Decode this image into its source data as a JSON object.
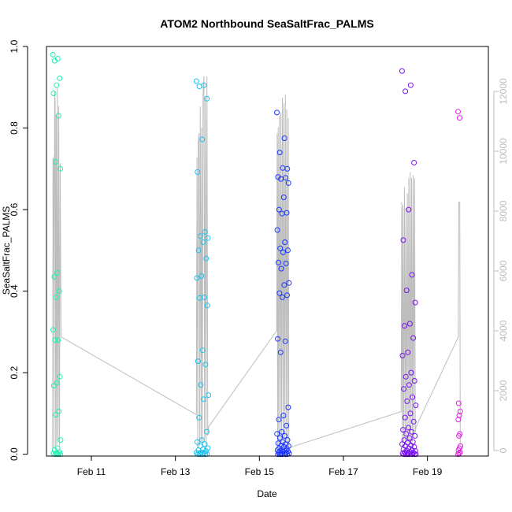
{
  "chart_data": {
    "type": "scatter",
    "title": "ATOM2 Northbound SeaSaltFrac_PALMS",
    "xlabel": "Date",
    "ylabel": "SeaSaltFrac_PALMS",
    "xlim": [
      "2017-02-09T22:20",
      "2017-02-20T10:50"
    ],
    "ylim": [
      -0.0045,
      1.0
    ],
    "x_ticks": [
      {
        "date": "2017-02-11",
        "label": "Feb 11"
      },
      {
        "date": "2017-02-13",
        "label": "Feb 13"
      },
      {
        "date": "2017-02-15",
        "label": "Feb 15"
      },
      {
        "date": "2017-02-17",
        "label": "Feb 17"
      },
      {
        "date": "2017-02-19",
        "label": "Feb 19"
      }
    ],
    "y_ticks": [
      0.0,
      0.2,
      0.4,
      0.6,
      0.8,
      1.0
    ],
    "y_tick_labels": [
      "0.0",
      "0.2",
      "0.4",
      "0.6",
      "0.8",
      "1.0"
    ],
    "y2_ticks": [
      0,
      2000,
      4000,
      6000,
      8000,
      10000,
      12000
    ],
    "y2_tick_labels": [
      "0",
      "2000",
      "4000",
      "6000",
      "8000",
      "10000",
      "12000"
    ],
    "y2lim": [
      -185,
      13500
    ],
    "colors": {
      "altitude_line": "#bdbdbd",
      "right_axis": "#bdbdbd",
      "flights": [
        "#1ef0b4",
        "#1ac3ef",
        "#1a37ff",
        "#7a14f0",
        "#e41ee6"
      ]
    },
    "flights": [
      {
        "start": "2017-02-10T02:00",
        "end": "2017-02-10T06:30",
        "values": [
          0.98,
          0.97,
          0.965,
          0.922,
          0.905,
          0.885,
          0.83,
          0.717,
          0.7,
          0.445,
          0.435,
          0.4,
          0.385,
          0.305,
          0.28,
          0.28,
          0.19,
          0.175,
          0.168,
          0.105,
          0.097,
          0.035,
          0.015,
          0.01,
          0.005,
          0.003,
          0.002,
          0.001,
          0.0,
          0.0,
          0.0
        ]
      },
      {
        "start": "2017-02-13T12:00",
        "end": "2017-02-13T19:00",
        "values": [
          0.915,
          0.905,
          0.902,
          0.872,
          0.772,
          0.692,
          0.545,
          0.535,
          0.53,
          0.52,
          0.5,
          0.48,
          0.437,
          0.432,
          0.385,
          0.383,
          0.365,
          0.255,
          0.228,
          0.22,
          0.17,
          0.145,
          0.135,
          0.09,
          0.055,
          0.035,
          0.03,
          0.025,
          0.02,
          0.015,
          0.012,
          0.01,
          0.008,
          0.005,
          0.004,
          0.003,
          0.002,
          0.001,
          0.0,
          0.0,
          0.0,
          0.0
        ]
      },
      {
        "start": "2017-02-15T10:00",
        "end": "2017-02-15T17:00",
        "values": [
          0.838,
          0.775,
          0.74,
          0.7,
          0.702,
          0.68,
          0.678,
          0.675,
          0.665,
          0.63,
          0.6,
          0.592,
          0.59,
          0.55,
          0.52,
          0.505,
          0.5,
          0.495,
          0.47,
          0.468,
          0.455,
          0.42,
          0.415,
          0.395,
          0.39,
          0.385,
          0.283,
          0.277,
          0.25,
          0.115,
          0.095,
          0.085,
          0.07,
          0.055,
          0.05,
          0.045,
          0.04,
          0.035,
          0.03,
          0.027,
          0.025,
          0.022,
          0.02,
          0.018,
          0.015,
          0.013,
          0.012,
          0.01,
          0.009,
          0.008,
          0.007,
          0.006,
          0.005,
          0.004,
          0.003,
          0.002,
          0.001,
          0.0,
          0.0,
          0.0,
          0.0,
          0.0,
          0.0
        ]
      },
      {
        "start": "2017-02-18T09:30",
        "end": "2017-02-18T17:30",
        "values": [
          0.94,
          0.905,
          0.89,
          0.715,
          0.6,
          0.525,
          0.44,
          0.402,
          0.372,
          0.32,
          0.315,
          0.285,
          0.25,
          0.242,
          0.2,
          0.19,
          0.18,
          0.17,
          0.16,
          0.14,
          0.13,
          0.12,
          0.1,
          0.09,
          0.08,
          0.065,
          0.06,
          0.055,
          0.05,
          0.045,
          0.04,
          0.035,
          0.03,
          0.028,
          0.025,
          0.022,
          0.02,
          0.018,
          0.015,
          0.012,
          0.01,
          0.009,
          0.008,
          0.006,
          0.005,
          0.004,
          0.003,
          0.002,
          0.001,
          0.0,
          0.0,
          0.0,
          0.0,
          0.0,
          0.0,
          0.0
        ]
      },
      {
        "start": "2017-02-19T17:30",
        "end": "2017-02-19T19:00",
        "values": [
          0.84,
          0.825,
          0.125,
          0.105,
          0.095,
          0.085,
          0.05,
          0.045,
          0.02,
          0.015,
          0.01,
          0.005,
          0.002,
          0.0
        ]
      }
    ],
    "altitude_series": {
      "axis": "right",
      "points": [
        [
          "2017-02-10T01:50",
          40
        ],
        [
          "2017-02-10T02:05",
          9800
        ],
        [
          "2017-02-10T02:25",
          9700
        ],
        [
          "2017-02-10T02:40",
          80
        ],
        [
          "2017-02-10T03:00",
          12000
        ],
        [
          "2017-02-10T03:20",
          11600
        ],
        [
          "2017-02-10T03:35",
          100
        ],
        [
          "2017-02-10T03:55",
          11200
        ],
        [
          "2017-02-10T04:15",
          200
        ],
        [
          "2017-02-10T04:35",
          12100
        ],
        [
          "2017-02-10T05:00",
          300
        ],
        [
          "2017-02-10T05:20",
          11500
        ],
        [
          "2017-02-10T05:45",
          150
        ],
        [
          "2017-02-10T06:10",
          9600
        ],
        [
          "2017-02-10T06:40",
          3800
        ],
        [
          "2017-02-13T12:00",
          1200
        ],
        [
          "2017-02-13T12:20",
          9800
        ],
        [
          "2017-02-13T12:45",
          100
        ],
        [
          "2017-02-13T13:05",
          10300
        ],
        [
          "2017-02-13T13:30",
          10600
        ],
        [
          "2017-02-13T13:50",
          150
        ],
        [
          "2017-02-13T14:15",
          11500
        ],
        [
          "2017-02-13T14:40",
          300
        ],
        [
          "2017-02-13T15:00",
          10800
        ],
        [
          "2017-02-13T15:25",
          200
        ],
        [
          "2017-02-13T15:50",
          11900
        ],
        [
          "2017-02-13T16:20",
          12500
        ],
        [
          "2017-02-13T16:40",
          400
        ],
        [
          "2017-02-13T17:05",
          11800
        ],
        [
          "2017-02-13T17:30",
          100
        ],
        [
          "2017-02-13T18:00",
          12500
        ],
        [
          "2017-02-13T18:30",
          500
        ],
        [
          "2017-02-13T19:00",
          800
        ],
        [
          "2017-02-15T09:50",
          4000
        ],
        [
          "2017-02-15T10:10",
          10600
        ],
        [
          "2017-02-15T10:25",
          150
        ],
        [
          "2017-02-15T10:45",
          10800
        ],
        [
          "2017-02-15T11:05",
          250
        ],
        [
          "2017-02-15T11:30",
          11200
        ],
        [
          "2017-02-15T11:55",
          200
        ],
        [
          "2017-02-15T12:20",
          11300
        ],
        [
          "2017-02-15T12:45",
          300
        ],
        [
          "2017-02-15T13:10",
          11800
        ],
        [
          "2017-02-15T13:35",
          200
        ],
        [
          "2017-02-15T14:00",
          11600
        ],
        [
          "2017-02-15T14:25",
          400
        ],
        [
          "2017-02-15T14:50",
          11900
        ],
        [
          "2017-02-15T15:15",
          300
        ],
        [
          "2017-02-15T15:40",
          11400
        ],
        [
          "2017-02-15T16:05",
          250
        ],
        [
          "2017-02-15T16:30",
          11100
        ],
        [
          "2017-02-15T16:50",
          120
        ],
        [
          "2017-02-15T17:10",
          100
        ],
        [
          "2017-02-18T09:00",
          1300
        ],
        [
          "2017-02-18T09:20",
          8300
        ],
        [
          "2017-02-18T09:40",
          150
        ],
        [
          "2017-02-18T10:00",
          8200
        ],
        [
          "2017-02-18T10:25",
          300
        ],
        [
          "2017-02-18T10:50",
          8800
        ],
        [
          "2017-02-18T11:15",
          200
        ],
        [
          "2017-02-18T11:40",
          8100
        ],
        [
          "2017-02-18T12:05",
          400
        ],
        [
          "2017-02-18T12:30",
          8600
        ],
        [
          "2017-02-18T12:55",
          250
        ],
        [
          "2017-02-18T13:20",
          9100
        ],
        [
          "2017-02-18T13:45",
          300
        ],
        [
          "2017-02-18T14:10",
          9300
        ],
        [
          "2017-02-18T14:35",
          200
        ],
        [
          "2017-02-18T15:00",
          9100
        ],
        [
          "2017-02-18T15:25",
          300
        ],
        [
          "2017-02-18T15:50",
          9200
        ],
        [
          "2017-02-18T16:15",
          500
        ],
        [
          "2017-02-18T16:40",
          9100
        ],
        [
          "2017-02-18T17:05",
          600
        ],
        [
          "2017-02-18T17:30",
          800
        ],
        [
          "2017-02-19T17:40",
          3800
        ],
        [
          "2017-02-19T17:55",
          8300
        ],
        [
          "2017-02-19T18:30",
          8300
        ],
        [
          "2017-02-19T18:45",
          200
        ]
      ]
    }
  }
}
